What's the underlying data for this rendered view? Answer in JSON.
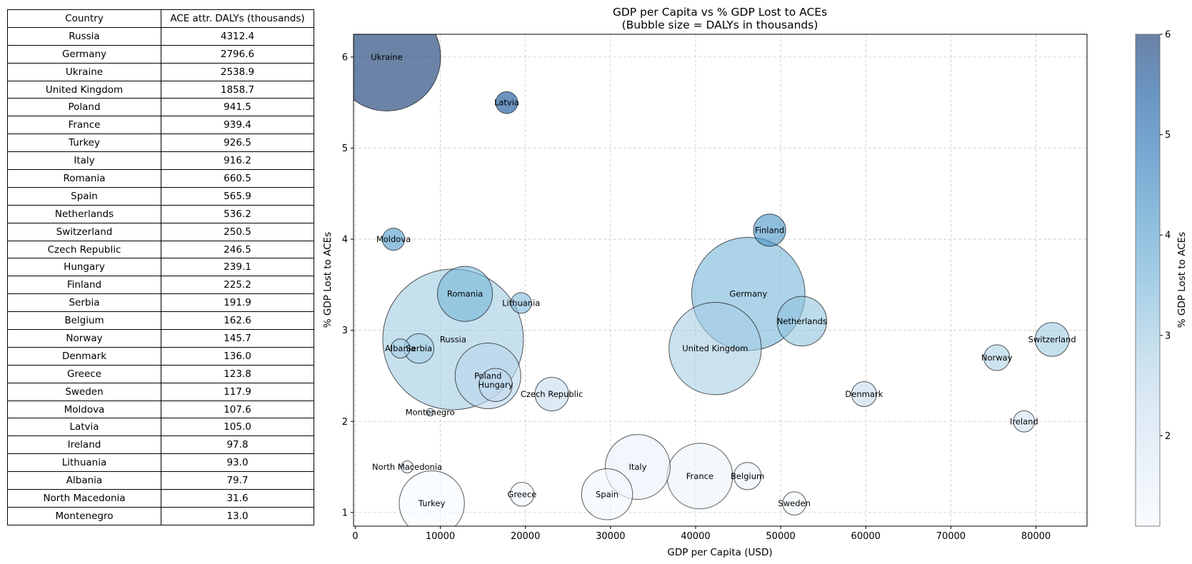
{
  "table": {
    "headers": [
      "Country",
      "ACE attr. DALYs (thousands)"
    ],
    "rows": [
      [
        "Russia",
        "4312.4"
      ],
      [
        "Germany",
        "2796.6"
      ],
      [
        "Ukraine",
        "2538.9"
      ],
      [
        "United Kingdom",
        "1858.7"
      ],
      [
        "Poland",
        "941.5"
      ],
      [
        "France",
        "939.4"
      ],
      [
        "Turkey",
        "926.5"
      ],
      [
        "Italy",
        "916.2"
      ],
      [
        "Romania",
        "660.5"
      ],
      [
        "Spain",
        "565.9"
      ],
      [
        "Netherlands",
        "536.2"
      ],
      [
        "Switzerland",
        "250.5"
      ],
      [
        "Czech Republic",
        "246.5"
      ],
      [
        "Hungary",
        "239.1"
      ],
      [
        "Finland",
        "225.2"
      ],
      [
        "Serbia",
        "191.9"
      ],
      [
        "Belgium",
        "162.6"
      ],
      [
        "Norway",
        "145.7"
      ],
      [
        "Denmark",
        "136.0"
      ],
      [
        "Greece",
        "123.8"
      ],
      [
        "Sweden",
        "117.9"
      ],
      [
        "Moldova",
        "107.6"
      ],
      [
        "Latvia",
        "105.0"
      ],
      [
        "Ireland",
        "97.8"
      ],
      [
        "Lithuania",
        "93.0"
      ],
      [
        "Albania",
        "79.7"
      ],
      [
        "North Macedonia",
        "31.6"
      ],
      [
        "Montenegro",
        "13.0"
      ]
    ]
  },
  "chart_data": {
    "type": "scatter",
    "title": "GDP per Capita vs % GDP Lost to ACEs",
    "subtitle": "(Bubble size = DALYs in thousands)",
    "xlabel": "GDP per Capita (USD)",
    "ylabel": "% GDP Lost to ACEs",
    "xlim": [
      -200,
      86000
    ],
    "ylim": [
      0.85,
      6.25
    ],
    "xticks": [
      0,
      10000,
      20000,
      30000,
      40000,
      50000,
      60000,
      70000,
      80000
    ],
    "yticks": [
      1,
      2,
      3,
      4,
      5,
      6
    ],
    "grid": true,
    "colorbar": {
      "label": "% GDP Lost to ACEs",
      "min": 1.1,
      "max": 6.0,
      "ticks": [
        2,
        3,
        4,
        5,
        6
      ]
    },
    "points": [
      {
        "label": "Russia",
        "x": 11500,
        "y": 2.9,
        "size": 4312.4
      },
      {
        "label": "Germany",
        "x": 46200,
        "y": 3.4,
        "size": 2796.6
      },
      {
        "label": "Ukraine",
        "x": 3700,
        "y": 6.0,
        "size": 2538.9
      },
      {
        "label": "United Kingdom",
        "x": 42300,
        "y": 2.8,
        "size": 1858.7
      },
      {
        "label": "Poland",
        "x": 15600,
        "y": 2.5,
        "size": 941.5
      },
      {
        "label": "France",
        "x": 40500,
        "y": 1.4,
        "size": 939.4
      },
      {
        "label": "Turkey",
        "x": 9000,
        "y": 1.1,
        "size": 926.5
      },
      {
        "label": "Italy",
        "x": 33200,
        "y": 1.5,
        "size": 916.2
      },
      {
        "label": "Romania",
        "x": 12900,
        "y": 3.4,
        "size": 660.5
      },
      {
        "label": "Spain",
        "x": 29600,
        "y": 1.2,
        "size": 565.9
      },
      {
        "label": "Netherlands",
        "x": 52500,
        "y": 3.1,
        "size": 536.2
      },
      {
        "label": "Switzerland",
        "x": 81900,
        "y": 2.9,
        "size": 250.5
      },
      {
        "label": "Czech Republic",
        "x": 23100,
        "y": 2.3,
        "size": 246.5
      },
      {
        "label": "Hungary",
        "x": 16500,
        "y": 2.4,
        "size": 239.1
      },
      {
        "label": "Finland",
        "x": 48700,
        "y": 4.1,
        "size": 225.2
      },
      {
        "label": "Serbia",
        "x": 7500,
        "y": 2.8,
        "size": 191.9
      },
      {
        "label": "Belgium",
        "x": 46100,
        "y": 1.4,
        "size": 162.6
      },
      {
        "label": "Norway",
        "x": 75400,
        "y": 2.7,
        "size": 145.7
      },
      {
        "label": "Denmark",
        "x": 59800,
        "y": 2.3,
        "size": 136.0
      },
      {
        "label": "Greece",
        "x": 19600,
        "y": 1.2,
        "size": 123.8
      },
      {
        "label": "Sweden",
        "x": 51600,
        "y": 1.1,
        "size": 117.9
      },
      {
        "label": "Moldova",
        "x": 4500,
        "y": 4.0,
        "size": 107.6
      },
      {
        "label": "Latvia",
        "x": 17800,
        "y": 5.5,
        "size": 105.0
      },
      {
        "label": "Ireland",
        "x": 78600,
        "y": 2.0,
        "size": 97.8
      },
      {
        "label": "Lithuania",
        "x": 19500,
        "y": 3.3,
        "size": 93.0
      },
      {
        "label": "Albania",
        "x": 5300,
        "y": 2.8,
        "size": 79.7
      },
      {
        "label": "North Macedonia",
        "x": 6100,
        "y": 1.5,
        "size": 31.6
      },
      {
        "label": "Montenegro",
        "x": 8800,
        "y": 2.1,
        "size": 13.0
      }
    ]
  }
}
